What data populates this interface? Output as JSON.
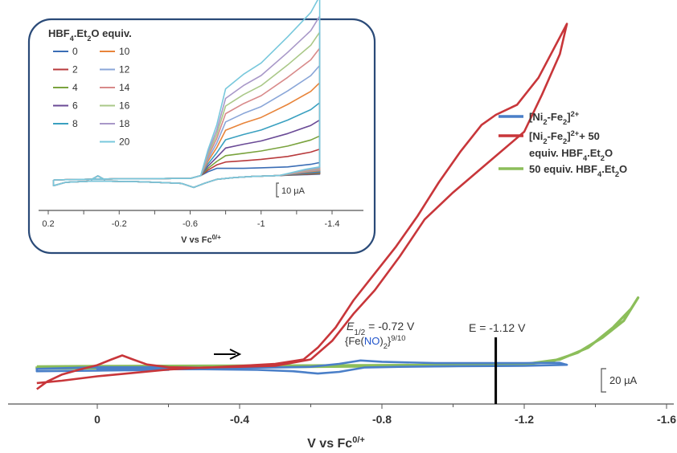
{
  "chart_data": [
    {
      "type": "line",
      "xlabel": "V vs Fc",
      "xlabel_sup": "0/+",
      "xlim": [
        0.2,
        -1.6
      ],
      "x_ticks": [
        "0",
        "-0.4",
        "-0.8",
        "-1.2",
        "-1.6"
      ],
      "scale_bar": "20 µA",
      "legend_position": "right",
      "legend": [
        {
          "parts": [
            {
              "t": "[Ni"
            },
            {
              "t": "2",
              "sub": true
            },
            {
              "t": "-Fe"
            },
            {
              "t": "2",
              "sub": true
            },
            {
              "t": "]"
            },
            {
              "t": "2+",
              "sup": true
            }
          ]
        },
        {
          "parts": [
            {
              "t": "[Ni"
            },
            {
              "t": "2",
              "sub": true
            },
            {
              "t": "-Fe"
            },
            {
              "t": "2",
              "sub": true
            },
            {
              "t": "]"
            },
            {
              "t": "2+",
              "sup": true
            },
            {
              "t": "+ 50"
            }
          ]
        },
        {
          "parts": [
            {
              "t": "equiv. HBF"
            },
            {
              "t": "4",
              "sub": true
            },
            {
              "t": ".Et"
            },
            {
              "t": "2",
              "sub": true
            },
            {
              "t": "O"
            }
          ]
        },
        {
          "parts": [
            {
              "t": "50 equiv. HBF"
            },
            {
              "t": "4",
              "sub": true
            },
            {
              "t": ".Et"
            },
            {
              "t": "2",
              "sub": true
            },
            {
              "t": "O"
            }
          ]
        }
      ],
      "annotations": {
        "e_half": "E",
        "e_half_sub": "1/2",
        "e_half_value": " = -0.72 V",
        "fe_no": [
          {
            "t": "{Fe("
          },
          {
            "t": "NO",
            "color": "#2255cc"
          },
          {
            "t": ")"
          },
          {
            "t": "2",
            "sub": true
          },
          {
            "t": "}"
          },
          {
            "t": "9/10",
            "sup": true
          }
        ],
        "e_line_label": "E = -1.12 V",
        "e_line_x": -1.12
      },
      "series": [
        {
          "color": "#4a7fc8",
          "points": [
            [
              -0.35,
              0
            ],
            [
              -0.5,
              0.1
            ],
            [
              -0.6,
              0.3
            ],
            [
              -0.68,
              1.2
            ],
            [
              -0.74,
              2.2
            ],
            [
              -0.8,
              1.8
            ],
            [
              -0.95,
              1.4
            ],
            [
              -1.1,
              1.4
            ],
            [
              -1.2,
              1.4
            ],
            [
              -1.3,
              1.5
            ],
            [
              -1.32,
              0.9
            ],
            [
              -1.2,
              0.6
            ],
            [
              -1.0,
              0.5
            ],
            [
              -0.85,
              0.3
            ],
            [
              -0.75,
              0.1
            ],
            [
              -0.68,
              -1.2
            ],
            [
              -0.62,
              -1.7
            ],
            [
              -0.55,
              -1.0
            ],
            [
              -0.45,
              -0.6
            ],
            [
              -0.3,
              -0.4
            ],
            [
              0.0,
              -0.3
            ],
            [
              -0.2,
              -0.6
            ],
            [
              0.0,
              -0.8
            ],
            [
              0.17,
              -1.0
            ],
            [
              0.17,
              -0.3
            ],
            [
              0.0,
              0.2
            ],
            [
              -0.2,
              0.2
            ],
            [
              -0.35,
              0
            ]
          ]
        },
        {
          "color": "#c8363a",
          "points": [
            [
              0.17,
              -6.3
            ],
            [
              0.14,
              -4.0
            ],
            [
              0.1,
              -2.0
            ],
            [
              0.05,
              -0.5
            ],
            [
              0.0,
              0.8
            ],
            [
              -0.04,
              2.5
            ],
            [
              -0.07,
              3.7
            ],
            [
              -0.1,
              2.5
            ],
            [
              -0.14,
              1.0
            ],
            [
              -0.2,
              0.2
            ],
            [
              -0.3,
              0.0
            ],
            [
              -0.4,
              0.6
            ],
            [
              -0.5,
              1.2
            ],
            [
              -0.58,
              2.5
            ],
            [
              -0.62,
              6.0
            ],
            [
              -0.67,
              12.0
            ],
            [
              -0.72,
              20.0
            ],
            [
              -0.78,
              28.0
            ],
            [
              -0.84,
              36.0
            ],
            [
              -0.9,
              45.0
            ],
            [
              -0.96,
              55.0
            ],
            [
              -1.02,
              64.0
            ],
            [
              -1.08,
              72.0
            ],
            [
              -1.12,
              75.0
            ],
            [
              -1.18,
              78.0
            ],
            [
              -1.24,
              86.0
            ],
            [
              -1.3,
              98.0
            ],
            [
              -1.32,
              102.0
            ],
            [
              -1.3,
              93.0
            ],
            [
              -1.25,
              81.0
            ],
            [
              -1.2,
              70.0
            ],
            [
              -1.1,
              61.0
            ],
            [
              -1.0,
              52.0
            ],
            [
              -0.92,
              44.0
            ],
            [
              -0.85,
              33.0
            ],
            [
              -0.78,
              23.0
            ],
            [
              -0.72,
              16.0
            ],
            [
              -0.66,
              8.0
            ],
            [
              -0.6,
              2.5
            ],
            [
              -0.5,
              0.6
            ],
            [
              -0.4,
              0.3
            ],
            [
              -0.3,
              0.1
            ],
            [
              -0.2,
              -0.5
            ],
            [
              -0.1,
              -1.5
            ],
            [
              0.0,
              -2.5
            ],
            [
              0.1,
              -3.8
            ],
            [
              0.17,
              -4.5
            ]
          ]
        },
        {
          "color": "#8cbe5a",
          "points": [
            [
              0.17,
              0.4
            ],
            [
              0.0,
              0.5
            ],
            [
              -0.3,
              0.6
            ],
            [
              -0.6,
              0.7
            ],
            [
              -0.9,
              0.8
            ],
            [
              -1.1,
              0.9
            ],
            [
              -1.2,
              1.1
            ],
            [
              -1.3,
              2.5
            ],
            [
              -1.38,
              6.0
            ],
            [
              -1.45,
              12.0
            ],
            [
              -1.5,
              17.5
            ],
            [
              -1.52,
              20.8
            ],
            [
              -1.48,
              14.0
            ],
            [
              -1.42,
              9.0
            ],
            [
              -1.35,
              4.5
            ],
            [
              -1.28,
              2.0
            ],
            [
              -1.2,
              1.0
            ],
            [
              -1.0,
              0.6
            ],
            [
              -0.7,
              0.4
            ],
            [
              -0.4,
              0.2
            ],
            [
              0.0,
              -0.1
            ],
            [
              0.17,
              -0.2
            ],
            [
              0.17,
              0.4
            ]
          ]
        }
      ]
    },
    {
      "type": "line",
      "title": "HBF",
      "title_sub": "4",
      "title_mid": ".Et",
      "title_sub2": "2",
      "title_end": "O equiv.",
      "xlabel": "V vs Fc",
      "xlabel_sup": "0/+",
      "xlim": [
        0.2,
        -1.4
      ],
      "x_ticks": [
        "0.2",
        "-0.2",
        "-0.6",
        "-1",
        "-1.4"
      ],
      "scale_bar": "10 µA",
      "legend_position": "top-left",
      "series": [
        {
          "name": "0",
          "color": "#3a6db5",
          "amp": 0.0
        },
        {
          "name": "2",
          "color": "#b83a3c",
          "amp": 1.0
        },
        {
          "name": "4",
          "color": "#7aa33e",
          "amp": 2.0
        },
        {
          "name": "6",
          "color": "#6a4a96",
          "amp": 3.2
        },
        {
          "name": "8",
          "color": "#3aa0c0",
          "amp": 4.5
        },
        {
          "name": "10",
          "color": "#e8843a",
          "amp": 6.0
        },
        {
          "name": "12",
          "color": "#8aa6d8",
          "amp": 7.3
        },
        {
          "name": "14",
          "color": "#d88a8a",
          "amp": 8.6
        },
        {
          "name": "16",
          "color": "#aac888",
          "amp": 9.8
        },
        {
          "name": "18",
          "color": "#a898c8",
          "amp": 11.0
        },
        {
          "name": "20",
          "color": "#78c8dc",
          "amp": 12.5
        }
      ]
    }
  ]
}
